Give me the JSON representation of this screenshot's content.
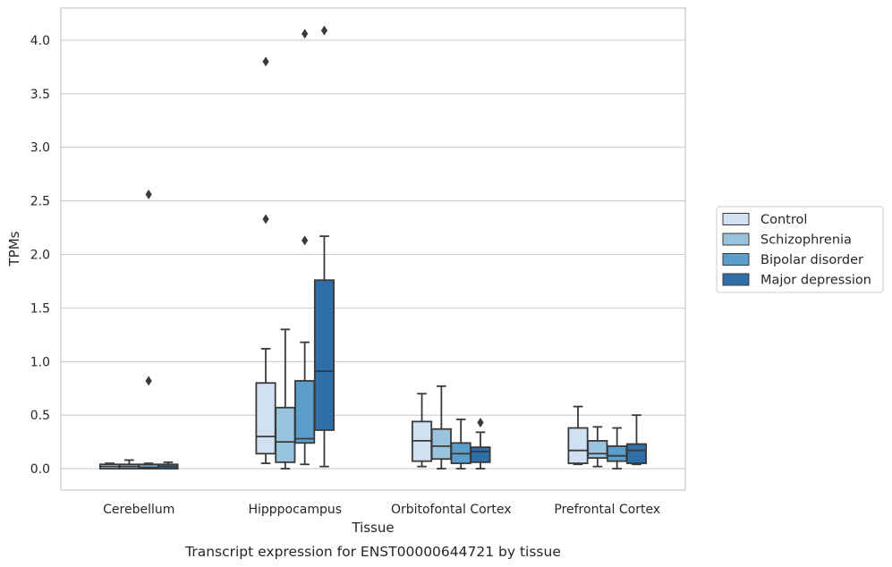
{
  "chart_data": {
    "type": "box",
    "xlabel": "Tissue",
    "ylabel": "TPMs",
    "caption": "Transcript expression for ENST00000644721 by tissue",
    "ylim": [
      -0.2,
      4.3
    ],
    "yticks": [
      0.0,
      0.5,
      1.0,
      1.5,
      2.0,
      2.5,
      3.0,
      3.5,
      4.0
    ],
    "ytick_labels": [
      "0.0",
      "0.5",
      "1.0",
      "1.5",
      "2.0",
      "2.5",
      "3.0",
      "3.5",
      "4.0"
    ],
    "grid": "horizontal",
    "legend_position": "right",
    "categories": [
      "Cerebellum",
      "Hipppocampus",
      "Orbitofontal Cortex",
      "Prefrontal Cortex"
    ],
    "series": [
      {
        "name": "Control",
        "color": "#d0e2f2",
        "boxes": [
          {
            "whislo": 0.0,
            "q1": 0.0,
            "med": 0.02,
            "q3": 0.04,
            "whishi": 0.05,
            "fliers": []
          },
          {
            "whislo": 0.05,
            "q1": 0.14,
            "med": 0.3,
            "q3": 0.8,
            "whishi": 1.12,
            "fliers": [
              2.33,
              3.8
            ]
          },
          {
            "whislo": 0.02,
            "q1": 0.07,
            "med": 0.26,
            "q3": 0.44,
            "whishi": 0.7,
            "fliers": []
          },
          {
            "whislo": 0.04,
            "q1": 0.05,
            "med": 0.17,
            "q3": 0.38,
            "whishi": 0.58,
            "fliers": []
          }
        ]
      },
      {
        "name": "Schizophrenia",
        "color": "#9ac3de",
        "boxes": [
          {
            "whislo": 0.0,
            "q1": 0.0,
            "med": 0.02,
            "q3": 0.04,
            "whishi": 0.08,
            "fliers": []
          },
          {
            "whislo": 0.0,
            "q1": 0.06,
            "med": 0.25,
            "q3": 0.57,
            "whishi": 1.3,
            "fliers": []
          },
          {
            "whislo": 0.0,
            "q1": 0.09,
            "med": 0.21,
            "q3": 0.37,
            "whishi": 0.77,
            "fliers": []
          },
          {
            "whislo": 0.02,
            "q1": 0.1,
            "med": 0.14,
            "q3": 0.26,
            "whishi": 0.39,
            "fliers": []
          }
        ]
      },
      {
        "name": "Bipolar disorder",
        "color": "#5b9ec9",
        "boxes": [
          {
            "whislo": 0.0,
            "q1": 0.0,
            "med": 0.01,
            "q3": 0.04,
            "whishi": 0.05,
            "fliers": [
              0.82,
              2.56
            ]
          },
          {
            "whislo": 0.04,
            "q1": 0.24,
            "med": 0.28,
            "q3": 0.82,
            "whishi": 1.18,
            "fliers": [
              2.13,
              4.06
            ]
          },
          {
            "whislo": 0.0,
            "q1": 0.05,
            "med": 0.14,
            "q3": 0.24,
            "whishi": 0.46,
            "fliers": []
          },
          {
            "whislo": 0.0,
            "q1": 0.07,
            "med": 0.12,
            "q3": 0.21,
            "whishi": 0.38,
            "fliers": []
          }
        ]
      },
      {
        "name": "Major depression",
        "color": "#2f6fa9",
        "boxes": [
          {
            "whislo": 0.0,
            "q1": 0.0,
            "med": 0.02,
            "q3": 0.04,
            "whishi": 0.06,
            "fliers": []
          },
          {
            "whislo": 0.02,
            "q1": 0.36,
            "med": 0.91,
            "q3": 1.76,
            "whishi": 2.17,
            "fliers": [
              4.09
            ]
          },
          {
            "whislo": 0.0,
            "q1": 0.06,
            "med": 0.16,
            "q3": 0.2,
            "whishi": 0.34,
            "fliers": [
              0.43
            ]
          },
          {
            "whislo": 0.04,
            "q1": 0.05,
            "med": 0.17,
            "q3": 0.23,
            "whishi": 0.5,
            "fliers": []
          }
        ]
      }
    ]
  }
}
